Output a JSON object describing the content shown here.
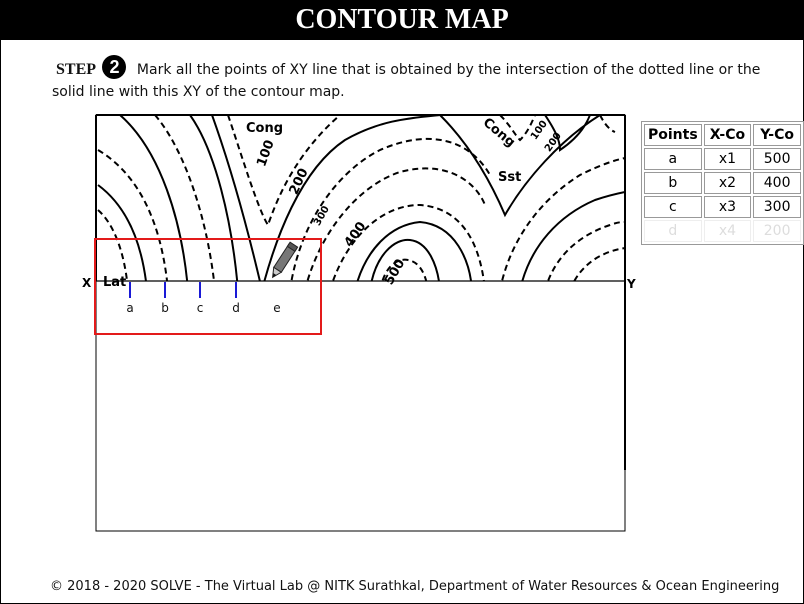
{
  "header": {
    "title": "CONTOUR MAP"
  },
  "step": {
    "label": "STEP",
    "number": "2",
    "text": "Mark all the points of XY line that is obtained by the intersection of the dotted line or the solid line with this XY of the contour map."
  },
  "map": {
    "labels": {
      "cong_left": "Cong",
      "cong_right": "Cong",
      "sst": "Sst",
      "lat": "Lat",
      "c100_left": "100",
      "c200_left": "200",
      "c300": "300",
      "c400": "400",
      "c500": "500",
      "c100_right": "100",
      "c200_right": "200"
    },
    "axis": {
      "x_label": "X",
      "y_label": "Y"
    },
    "marks": [
      "a",
      "b",
      "c",
      "d",
      "e"
    ]
  },
  "table": {
    "headers": [
      "Points",
      "X-Co",
      "Y-Co"
    ],
    "rows": [
      [
        "a",
        "x1",
        "500"
      ],
      [
        "b",
        "x2",
        "400"
      ],
      [
        "c",
        "x3",
        "300"
      ],
      [
        "d",
        "x4",
        "200"
      ]
    ]
  },
  "footer": {
    "text": "© 2018 - 2020 SOLVE - The Virtual Lab @ NITK Surathkal, Department of Water Resources & Ocean Engineering"
  },
  "colors": {
    "highlight": "#e31a1a",
    "marker": "#1a1ad6",
    "header_bg": "#000000"
  }
}
